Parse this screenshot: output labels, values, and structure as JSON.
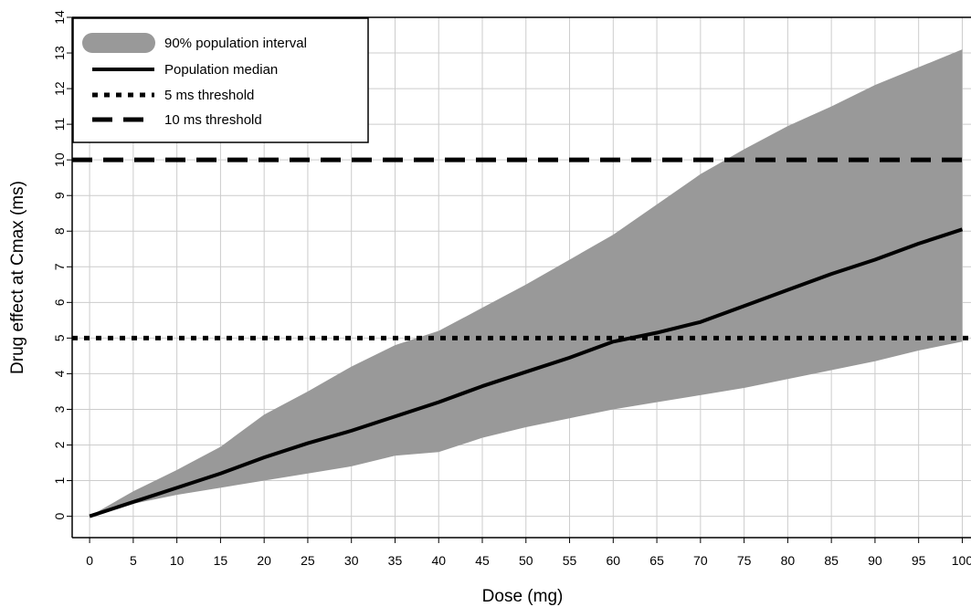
{
  "chart_data": {
    "type": "line",
    "title": "",
    "xlabel": "Dose (mg)",
    "ylabel": "Drug effect at Cmax (ms)",
    "xlim": [
      -2,
      101
    ],
    "ylim": [
      -0.6,
      14
    ],
    "grid": true,
    "legend_position": "top-left",
    "x_ticks": [
      0,
      5,
      10,
      15,
      20,
      25,
      30,
      35,
      40,
      45,
      50,
      55,
      60,
      65,
      70,
      75,
      80,
      85,
      90,
      95,
      100
    ],
    "y_ticks": [
      0,
      1,
      2,
      3,
      4,
      5,
      6,
      7,
      8,
      9,
      10,
      11,
      12,
      13,
      14
    ],
    "interval": {
      "name": "90% population interval",
      "color": "#999999",
      "x": [
        0,
        5,
        10,
        15,
        20,
        25,
        30,
        35,
        40,
        45,
        50,
        55,
        60,
        65,
        70,
        75,
        80,
        85,
        90,
        95,
        100
      ],
      "lower": [
        0,
        0.35,
        0.6,
        0.8,
        1.0,
        1.2,
        1.4,
        1.7,
        1.8,
        2.2,
        2.5,
        2.75,
        3.0,
        3.2,
        3.4,
        3.6,
        3.85,
        4.1,
        4.35,
        4.65,
        4.9
      ],
      "upper": [
        0,
        0.7,
        1.3,
        1.95,
        2.85,
        3.5,
        4.2,
        4.8,
        5.2,
        5.85,
        6.5,
        7.2,
        7.9,
        8.75,
        9.6,
        10.3,
        10.95,
        11.5,
        12.1,
        12.6,
        13.1
      ]
    },
    "series": [
      {
        "name": "Population median",
        "style": "solid",
        "color": "#000000",
        "x": [
          0,
          5,
          10,
          15,
          20,
          25,
          30,
          35,
          40,
          45,
          50,
          55,
          60,
          65,
          70,
          75,
          80,
          85,
          90,
          95,
          100
        ],
        "values": [
          0,
          0.4,
          0.8,
          1.2,
          1.65,
          2.05,
          2.4,
          2.8,
          3.2,
          3.65,
          4.05,
          4.45,
          4.9,
          5.15,
          5.45,
          5.9,
          6.35,
          6.8,
          7.2,
          7.65,
          8.05
        ]
      }
    ],
    "thresholds": [
      {
        "name": "5 ms threshold",
        "value": 5,
        "style": "dotted",
        "color": "#000000"
      },
      {
        "name": "10 ms threshold",
        "value": 10,
        "style": "dashed",
        "color": "#000000"
      }
    ]
  }
}
